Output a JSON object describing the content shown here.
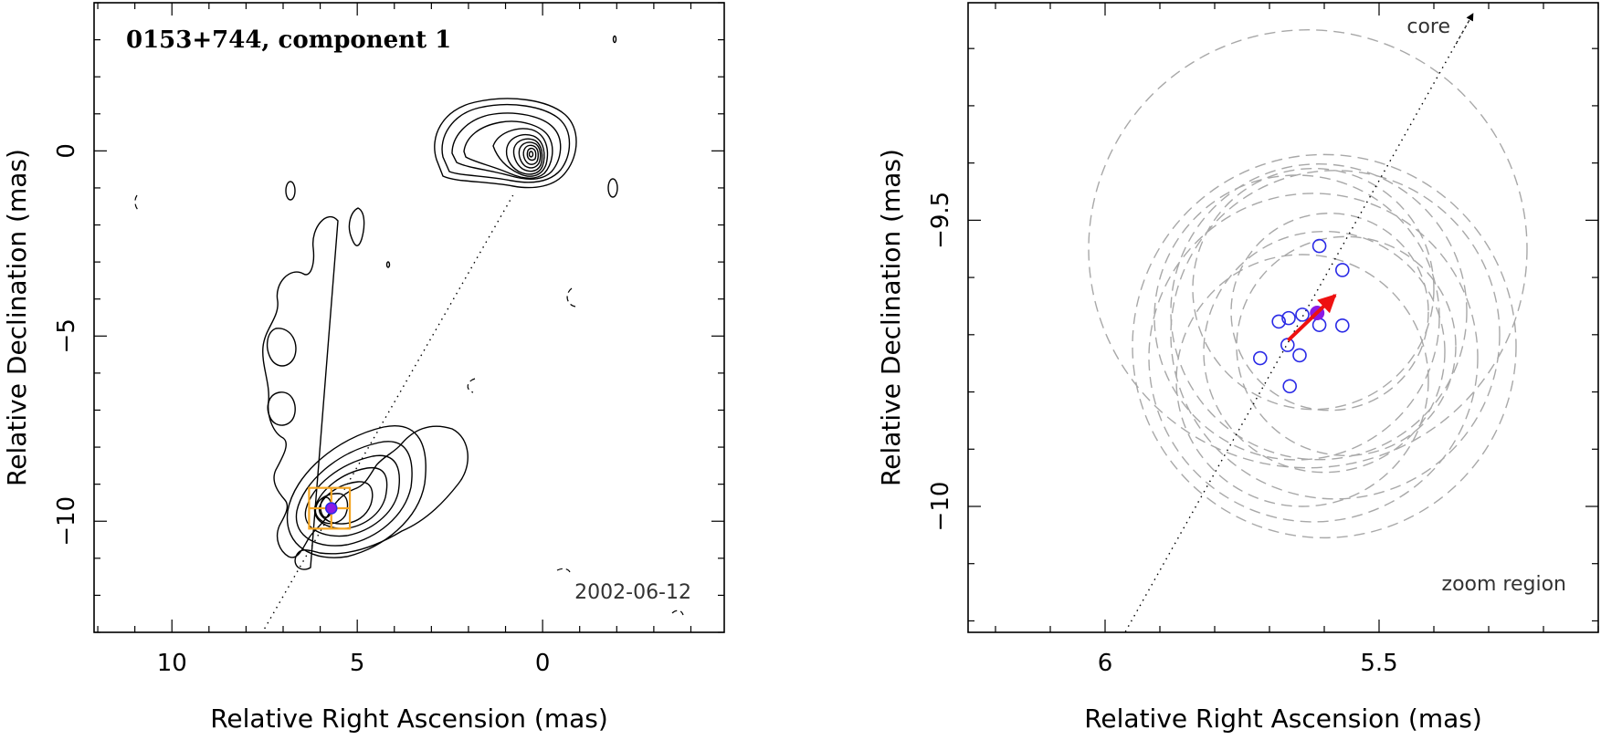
{
  "chart_data": [
    {
      "type": "contour",
      "title": "0153+744, component 1",
      "date": "2002-06-12",
      "xlabel": "Relative Right Ascension (mas)",
      "ylabel": "Relative Declination (mas)",
      "xlim": [
        12.1,
        -4.9
      ],
      "ylim": [
        -13.0,
        4.0
      ],
      "x_ticks": [
        10,
        5,
        0
      ],
      "y_ticks": [
        0,
        -5,
        -10
      ],
      "core": {
        "x": 0.0,
        "y": 0.0
      },
      "component_1": {
        "x": 5.7,
        "y": -9.65
      },
      "zoom_box": {
        "x": [
          5.2,
          6.3
        ],
        "y": [
          -10.2,
          -9.1
        ]
      },
      "jet_direction_line": [
        [
          7.5,
          -12.9
        ],
        [
          0.8,
          -1.2
        ]
      ]
    },
    {
      "type": "scatter",
      "title": "zoom region",
      "core_label": "core",
      "xlabel": "Relative Right Ascension (mas)",
      "ylabel": "Relative Declination (mas)",
      "xlim": [
        6.25,
        5.1
      ],
      "ylim": [
        -10.22,
        -9.12
      ],
      "x_ticks": [
        6,
        5.5
      ],
      "y_ticks": [
        -9.5,
        -10
      ],
      "epoch_positions": [
        {
          "x": 5.609,
          "y": -9.545
        },
        {
          "x": 5.567,
          "y": -9.587
        },
        {
          "x": 5.64,
          "y": -9.665
        },
        {
          "x": 5.609,
          "y": -9.683
        },
        {
          "x": 5.567,
          "y": -9.684
        },
        {
          "x": 5.683,
          "y": -9.677
        },
        {
          "x": 5.665,
          "y": -9.671
        },
        {
          "x": 5.667,
          "y": -9.718
        },
        {
          "x": 5.645,
          "y": -9.736
        },
        {
          "x": 5.717,
          "y": -9.741
        },
        {
          "x": 5.663,
          "y": -9.79
        }
      ],
      "mean_position": {
        "x": 5.613,
        "y": -9.662
      },
      "motion_vector": {
        "from": [
          5.666,
          -9.71
        ],
        "to": [
          5.58,
          -9.631
        ]
      },
      "error_circles": [
        {
          "x": 5.63,
          "y": -9.55,
          "r": 0.4
        },
        {
          "x": 5.6,
          "y": -9.72,
          "r": 0.35
        },
        {
          "x": 5.61,
          "y": -9.66,
          "r": 0.27
        },
        {
          "x": 5.62,
          "y": -9.74,
          "r": 0.3
        },
        {
          "x": 5.58,
          "y": -9.7,
          "r": 0.3
        },
        {
          "x": 5.65,
          "y": -9.67,
          "r": 0.26
        },
        {
          "x": 5.6,
          "y": -9.73,
          "r": 0.22
        },
        {
          "x": 5.62,
          "y": -9.62,
          "r": 0.22
        },
        {
          "x": 5.64,
          "y": -9.78,
          "r": 0.23
        },
        {
          "x": 5.59,
          "y": -9.66,
          "r": 0.18
        },
        {
          "x": 5.56,
          "y": -9.72,
          "r": 0.2
        }
      ],
      "jet_direction_line": [
        [
          5.963,
          -10.219
        ],
        [
          5.335,
          -9.15
        ]
      ]
    }
  ],
  "colors": {
    "zoom_box": "#f5a623",
    "error_circle": "#a8a8a8",
    "epoch_marker": "#2a2ae6",
    "mean_marker": "#8a1ae6",
    "motion_arrow": "#ee1111"
  }
}
